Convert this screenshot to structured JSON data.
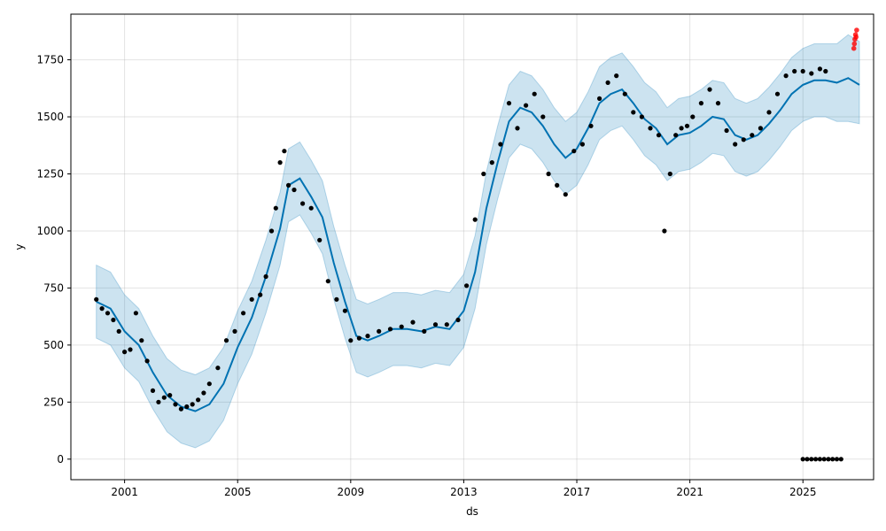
{
  "chart_data": {
    "type": "scatter",
    "title": "",
    "xlabel": "ds",
    "ylabel": "y",
    "xlim": [
      1999.1,
      2027.5
    ],
    "ylim": [
      -90,
      1950
    ],
    "grid": true,
    "x_ticks": [
      2001,
      2005,
      2009,
      2013,
      2017,
      2021,
      2025
    ],
    "y_ticks": [
      0,
      250,
      500,
      750,
      1000,
      1250,
      1500,
      1750
    ],
    "colors": {
      "observed": "#000000",
      "forecast": "#0072B2",
      "interval": "#0072B2",
      "recent": "#ff0000"
    },
    "series": [
      {
        "role": "observed",
        "x": [
          2000.0,
          2000.2,
          2000.4,
          2000.6,
          2000.8,
          2001.0,
          2001.2,
          2001.4,
          2001.6,
          2001.8,
          2002.0,
          2002.2,
          2002.4,
          2002.6,
          2002.8,
          2003.0,
          2003.2,
          2003.4,
          2003.6,
          2003.8,
          2004.0,
          2004.3,
          2004.6,
          2004.9,
          2005.2,
          2005.5,
          2005.8,
          2006.0,
          2006.2,
          2006.35,
          2006.5,
          2006.65,
          2006.8,
          2007.0,
          2007.3,
          2007.6,
          2007.9,
          2008.2,
          2008.5,
          2008.8,
          2009.0,
          2009.3,
          2009.6,
          2010.0,
          2010.4,
          2010.8,
          2011.2,
          2011.6,
          2012.0,
          2012.4,
          2012.8,
          2013.1,
          2013.4,
          2013.7,
          2014.0,
          2014.3,
          2014.6,
          2014.9,
          2015.2,
          2015.5,
          2015.8,
          2016.0,
          2016.3,
          2016.6,
          2016.9,
          2017.2,
          2017.5,
          2017.8,
          2018.1,
          2018.4,
          2018.7,
          2019.0,
          2019.3,
          2019.6,
          2019.9,
          2020.1,
          2020.3,
          2020.5,
          2020.7,
          2020.9,
          2021.1,
          2021.4,
          2021.7,
          2022.0,
          2022.3,
          2022.6,
          2022.9,
          2023.2,
          2023.5,
          2023.8,
          2024.1,
          2024.4,
          2024.7,
          2025.0,
          2025.3,
          2025.6,
          2025.8
        ],
        "y": [
          700,
          660,
          640,
          610,
          560,
          470,
          480,
          640,
          520,
          430,
          300,
          250,
          270,
          280,
          240,
          220,
          230,
          240,
          260,
          290,
          330,
          400,
          520,
          560,
          640,
          700,
          720,
          800,
          1000,
          1100,
          1300,
          1350,
          1200,
          1180,
          1120,
          1100,
          960,
          780,
          700,
          650,
          520,
          530,
          540,
          560,
          570,
          580,
          600,
          560,
          590,
          590,
          610,
          760,
          1050,
          1250,
          1300,
          1380,
          1560,
          1450,
          1550,
          1600,
          1500,
          1250,
          1200,
          1160,
          1350,
          1380,
          1460,
          1580,
          1650,
          1680,
          1600,
          1520,
          1500,
          1450,
          1420,
          1000,
          1250,
          1420,
          1450,
          1460,
          1500,
          1560,
          1620,
          1560,
          1440,
          1380,
          1400,
          1420,
          1450,
          1520,
          1600,
          1680,
          1700,
          1700,
          1690,
          1710,
          1700
        ]
      },
      {
        "role": "observed-outliers",
        "x": [
          2025.0,
          2025.15,
          2025.3,
          2025.45,
          2025.6,
          2025.75,
          2025.9,
          2026.05,
          2026.2,
          2026.35
        ],
        "y": [
          0,
          0,
          0,
          0,
          0,
          0,
          0,
          0,
          0,
          0
        ]
      },
      {
        "role": "recent",
        "x": [
          2026.8,
          2026.82,
          2026.84,
          2026.86,
          2026.88,
          2026.9
        ],
        "y": [
          1800,
          1820,
          1840,
          1860,
          1850,
          1880
        ]
      },
      {
        "role": "forecast",
        "x": [
          2000.0,
          2000.5,
          2001.0,
          2001.5,
          2002.0,
          2002.5,
          2003.0,
          2003.5,
          2004.0,
          2004.5,
          2005.0,
          2005.5,
          2006.0,
          2006.5,
          2006.8,
          2007.2,
          2007.6,
          2008.0,
          2008.4,
          2008.8,
          2009.2,
          2009.6,
          2010.0,
          2010.5,
          2011.0,
          2011.5,
          2012.0,
          2012.5,
          2013.0,
          2013.4,
          2013.8,
          2014.2,
          2014.6,
          2015.0,
          2015.4,
          2015.8,
          2016.2,
          2016.6,
          2017.0,
          2017.4,
          2017.8,
          2018.2,
          2018.6,
          2019.0,
          2019.4,
          2019.8,
          2020.2,
          2020.6,
          2021.0,
          2021.4,
          2021.8,
          2022.2,
          2022.6,
          2023.0,
          2023.4,
          2023.8,
          2024.2,
          2024.6,
          2025.0,
          2025.4,
          2025.8,
          2026.2,
          2026.6,
          2027.0
        ],
        "y": [
          690,
          660,
          560,
          500,
          380,
          280,
          230,
          210,
          240,
          330,
          490,
          620,
          800,
          1010,
          1200,
          1230,
          1150,
          1060,
          860,
          690,
          540,
          520,
          540,
          570,
          570,
          560,
          580,
          570,
          650,
          820,
          1100,
          1300,
          1480,
          1540,
          1520,
          1460,
          1380,
          1320,
          1360,
          1450,
          1560,
          1600,
          1620,
          1560,
          1490,
          1450,
          1380,
          1420,
          1430,
          1460,
          1500,
          1490,
          1420,
          1400,
          1420,
          1470,
          1530,
          1600,
          1640,
          1660,
          1660,
          1650,
          1670,
          1640
        ]
      },
      {
        "role": "interval",
        "x": [
          2000.0,
          2000.5,
          2001.0,
          2001.5,
          2002.0,
          2002.5,
          2003.0,
          2003.5,
          2004.0,
          2004.5,
          2005.0,
          2005.5,
          2006.0,
          2006.5,
          2006.8,
          2007.2,
          2007.6,
          2008.0,
          2008.4,
          2008.8,
          2009.2,
          2009.6,
          2010.0,
          2010.5,
          2011.0,
          2011.5,
          2012.0,
          2012.5,
          2013.0,
          2013.4,
          2013.8,
          2014.2,
          2014.6,
          2015.0,
          2015.4,
          2015.8,
          2016.2,
          2016.6,
          2017.0,
          2017.4,
          2017.8,
          2018.2,
          2018.6,
          2019.0,
          2019.4,
          2019.8,
          2020.2,
          2020.6,
          2021.0,
          2021.4,
          2021.8,
          2022.2,
          2022.6,
          2023.0,
          2023.4,
          2023.8,
          2024.2,
          2024.6,
          2025.0,
          2025.4,
          2025.8,
          2026.2,
          2026.6,
          2027.0
        ],
        "upper": [
          850,
          820,
          720,
          660,
          540,
          440,
          390,
          370,
          400,
          490,
          650,
          780,
          960,
          1170,
          1360,
          1390,
          1310,
          1220,
          1020,
          850,
          700,
          680,
          700,
          730,
          730,
          720,
          740,
          730,
          810,
          980,
          1260,
          1460,
          1640,
          1700,
          1680,
          1620,
          1540,
          1480,
          1520,
          1610,
          1720,
          1760,
          1780,
          1720,
          1650,
          1610,
          1540,
          1580,
          1590,
          1620,
          1660,
          1650,
          1580,
          1560,
          1580,
          1630,
          1690,
          1760,
          1800,
          1820,
          1820,
          1820,
          1860,
          1830
        ],
        "lower": [
          530,
          500,
          400,
          340,
          220,
          120,
          70,
          50,
          80,
          170,
          330,
          460,
          640,
          850,
          1040,
          1070,
          990,
          900,
          700,
          530,
          380,
          360,
          380,
          410,
          410,
          400,
          420,
          410,
          490,
          660,
          940,
          1140,
          1320,
          1380,
          1360,
          1300,
          1220,
          1160,
          1200,
          1290,
          1400,
          1440,
          1460,
          1400,
          1330,
          1290,
          1220,
          1260,
          1270,
          1300,
          1340,
          1330,
          1260,
          1240,
          1260,
          1310,
          1370,
          1440,
          1480,
          1500,
          1500,
          1480,
          1480,
          1470
        ]
      }
    ]
  }
}
